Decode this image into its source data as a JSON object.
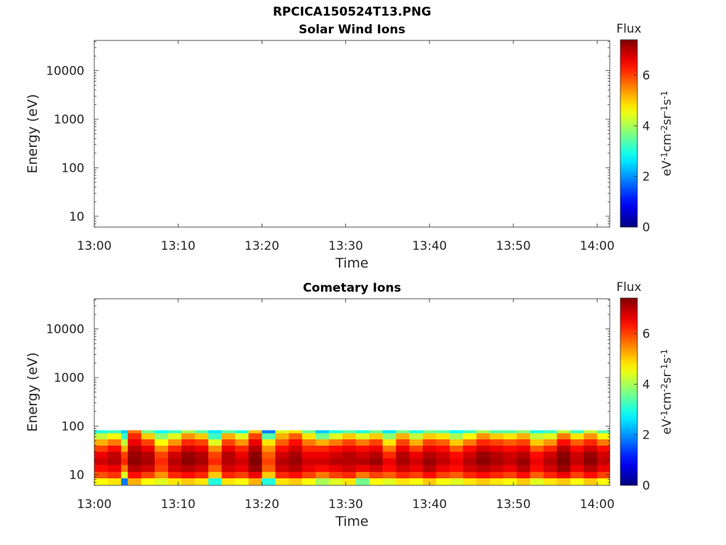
{
  "figure_title": "RPCICA150524T13.PNG",
  "colorbar": {
    "label_text": "Flux",
    "unit_parts": [
      "eV",
      "-1",
      "cm",
      "-2",
      "sr",
      "-1",
      "s",
      "-1"
    ],
    "ticks": [
      "0",
      "2",
      "4",
      "6"
    ],
    "range": [
      0,
      7.4
    ],
    "colormap": "jet"
  },
  "chart_data": [
    {
      "type": "heatmap",
      "title": "Solar Wind Ions",
      "xlabel": "Time",
      "ylabel": "Energy (eV)",
      "x_ticks": [
        "13:00",
        "13:10",
        "13:20",
        "13:30",
        "13:40",
        "13:50",
        "14:00"
      ],
      "x_range_minutes": [
        0,
        61.5
      ],
      "y_scale": "log",
      "y_ticks": [
        "10",
        "100",
        "1000",
        "10000"
      ],
      "y_range": [
        6,
        42000
      ],
      "energy_bins_edges": [
        6.2,
        8.5,
        11.5,
        16,
        22,
        30,
        40,
        54,
        72,
        82
      ],
      "columns": []
    },
    {
      "type": "heatmap",
      "title": "Cometary Ions",
      "xlabel": "Time",
      "ylabel": "Energy (eV)",
      "x_ticks": [
        "13:00",
        "13:10",
        "13:20",
        "13:30",
        "13:40",
        "13:50",
        "14:00"
      ],
      "x_range_minutes": [
        0,
        61.5
      ],
      "y_scale": "log",
      "y_ticks": [
        "10",
        "100",
        "1000",
        "10000"
      ],
      "y_range": [
        6,
        42000
      ],
      "energy_bins_edges": [
        6.2,
        8.5,
        11.5,
        16,
        22,
        30,
        40,
        54,
        72,
        82
      ],
      "columns": [
        {
          "t": 0.0,
          "dt": 1.6,
          "flux": [
            4.6,
            5.9,
            6.4,
            6.8,
            6.6,
            6.0,
            5.2,
            4.2,
            3.0
          ]
        },
        {
          "t": 1.6,
          "dt": 1.6,
          "flux": [
            4.8,
            6.1,
            6.6,
            7.0,
            6.9,
            6.4,
            5.6,
            4.6,
            3.2
          ]
        },
        {
          "t": 3.2,
          "dt": 0.8,
          "flux": [
            1.8,
            4.4,
            5.6,
            6.2,
            6.0,
            5.2,
            4.2,
            3.2,
            2.4
          ]
        },
        {
          "t": 4.0,
          "dt": 1.6,
          "flux": [
            5.2,
            6.4,
            7.0,
            7.3,
            7.2,
            7.0,
            6.6,
            6.2,
            5.6
          ]
        },
        {
          "t": 5.6,
          "dt": 1.6,
          "flux": [
            4.6,
            6.0,
            6.8,
            7.1,
            7.0,
            6.6,
            6.0,
            5.0,
            3.6
          ]
        },
        {
          "t": 7.2,
          "dt": 1.6,
          "flux": [
            4.4,
            5.4,
            6.0,
            6.2,
            6.0,
            5.4,
            4.6,
            3.8,
            2.8
          ]
        },
        {
          "t": 8.8,
          "dt": 1.6,
          "flux": [
            4.8,
            6.2,
            6.8,
            7.0,
            6.8,
            6.2,
            5.4,
            4.4,
            3.2
          ]
        },
        {
          "t": 10.4,
          "dt": 1.6,
          "flux": [
            5.0,
            6.4,
            7.0,
            7.3,
            7.2,
            6.8,
            6.2,
            5.4,
            4.0
          ]
        },
        {
          "t": 12.0,
          "dt": 1.6,
          "flux": [
            4.8,
            6.2,
            6.8,
            7.1,
            7.0,
            6.6,
            6.0,
            5.0,
            3.4
          ]
        },
        {
          "t": 13.6,
          "dt": 1.6,
          "flux": [
            3.0,
            5.0,
            5.8,
            6.2,
            6.0,
            5.4,
            4.4,
            3.2,
            2.6
          ]
        },
        {
          "t": 15.2,
          "dt": 1.6,
          "flux": [
            4.8,
            6.2,
            6.8,
            7.0,
            7.0,
            6.6,
            6.0,
            5.2,
            3.4
          ]
        },
        {
          "t": 16.8,
          "dt": 1.6,
          "flux": [
            4.6,
            6.0,
            6.6,
            6.8,
            6.6,
            6.2,
            5.4,
            4.4,
            3.0
          ]
        },
        {
          "t": 18.4,
          "dt": 1.6,
          "flux": [
            5.2,
            6.6,
            7.2,
            7.4,
            7.3,
            7.0,
            6.6,
            6.0,
            5.0
          ]
        },
        {
          "t": 20.0,
          "dt": 1.6,
          "flux": [
            3.0,
            5.0,
            5.8,
            6.0,
            5.8,
            5.4,
            4.8,
            3.4,
            1.8
          ]
        },
        {
          "t": 21.6,
          "dt": 1.6,
          "flux": [
            4.8,
            6.2,
            6.8,
            7.0,
            6.8,
            6.4,
            5.8,
            5.2,
            4.4
          ]
        },
        {
          "t": 23.2,
          "dt": 1.6,
          "flux": [
            5.0,
            6.4,
            7.0,
            7.2,
            7.1,
            6.8,
            6.4,
            5.8,
            4.8
          ]
        },
        {
          "t": 24.8,
          "dt": 1.6,
          "flux": [
            4.6,
            6.0,
            6.6,
            6.8,
            6.6,
            6.2,
            5.6,
            4.8,
            3.6
          ]
        },
        {
          "t": 26.4,
          "dt": 1.6,
          "flux": [
            4.0,
            5.6,
            6.4,
            6.8,
            6.6,
            6.2,
            5.2,
            3.6,
            2.4
          ]
        },
        {
          "t": 28.0,
          "dt": 1.6,
          "flux": [
            4.4,
            6.0,
            6.6,
            7.0,
            6.8,
            6.4,
            5.6,
            4.4,
            3.0
          ]
        },
        {
          "t": 29.6,
          "dt": 1.6,
          "flux": [
            4.8,
            6.2,
            6.8,
            7.0,
            7.0,
            6.6,
            6.0,
            5.0,
            3.4
          ]
        },
        {
          "t": 31.2,
          "dt": 1.6,
          "flux": [
            3.6,
            5.6,
            6.6,
            7.0,
            6.8,
            6.4,
            5.6,
            4.4,
            3.0
          ]
        },
        {
          "t": 32.8,
          "dt": 1.6,
          "flux": [
            4.6,
            6.0,
            6.8,
            7.2,
            7.0,
            6.6,
            6.0,
            5.0,
            3.6
          ]
        },
        {
          "t": 34.4,
          "dt": 1.6,
          "flux": [
            4.4,
            5.8,
            6.4,
            6.6,
            6.2,
            5.6,
            4.8,
            3.8,
            2.6
          ]
        },
        {
          "t": 36.0,
          "dt": 1.6,
          "flux": [
            4.8,
            6.2,
            6.8,
            7.1,
            7.0,
            6.6,
            6.0,
            5.2,
            3.6
          ]
        },
        {
          "t": 37.6,
          "dt": 1.6,
          "flux": [
            4.6,
            6.0,
            6.6,
            6.8,
            6.6,
            6.0,
            5.2,
            4.2,
            3.0
          ]
        },
        {
          "t": 39.2,
          "dt": 1.6,
          "flux": [
            5.0,
            6.4,
            7.0,
            7.2,
            7.0,
            6.6,
            6.0,
            5.0,
            3.6
          ]
        },
        {
          "t": 40.8,
          "dt": 1.6,
          "flux": [
            4.6,
            6.0,
            6.6,
            6.9,
            6.8,
            6.4,
            5.8,
            4.8,
            3.4
          ]
        },
        {
          "t": 42.4,
          "dt": 1.6,
          "flux": [
            4.4,
            5.8,
            6.4,
            6.6,
            6.4,
            5.8,
            5.0,
            4.0,
            2.8
          ]
        },
        {
          "t": 44.0,
          "dt": 1.6,
          "flux": [
            4.8,
            6.2,
            6.8,
            7.0,
            6.8,
            6.4,
            5.6,
            4.6,
            3.2
          ]
        },
        {
          "t": 45.6,
          "dt": 1.6,
          "flux": [
            5.0,
            6.4,
            7.0,
            7.3,
            7.2,
            6.8,
            6.2,
            5.4,
            4.0
          ]
        },
        {
          "t": 47.2,
          "dt": 1.6,
          "flux": [
            4.8,
            6.2,
            6.8,
            7.1,
            7.0,
            6.6,
            6.0,
            5.0,
            3.4
          ]
        },
        {
          "t": 48.8,
          "dt": 1.6,
          "flux": [
            4.6,
            6.0,
            6.6,
            6.9,
            6.8,
            6.4,
            5.8,
            4.8,
            3.4
          ]
        },
        {
          "t": 50.4,
          "dt": 1.6,
          "flux": [
            5.0,
            6.4,
            7.0,
            7.2,
            7.0,
            6.6,
            6.0,
            5.2,
            3.8
          ]
        },
        {
          "t": 52.0,
          "dt": 1.6,
          "flux": [
            4.4,
            5.8,
            6.4,
            6.6,
            6.4,
            5.8,
            5.0,
            4.2,
            3.0
          ]
        },
        {
          "t": 53.6,
          "dt": 1.6,
          "flux": [
            4.8,
            6.2,
            6.8,
            7.0,
            6.8,
            6.2,
            5.4,
            4.4,
            3.2
          ]
        },
        {
          "t": 55.2,
          "dt": 1.6,
          "flux": [
            5.0,
            6.6,
            7.2,
            7.4,
            7.3,
            7.0,
            6.4,
            5.6,
            4.2
          ]
        },
        {
          "t": 56.8,
          "dt": 1.6,
          "flux": [
            4.6,
            6.0,
            6.6,
            6.9,
            6.8,
            6.4,
            5.8,
            4.8,
            3.2
          ]
        },
        {
          "t": 58.4,
          "dt": 1.6,
          "flux": [
            5.0,
            6.4,
            7.0,
            7.3,
            7.2,
            6.8,
            6.2,
            5.4,
            4.2
          ]
        },
        {
          "t": 60.0,
          "dt": 1.5,
          "flux": [
            4.6,
            6.0,
            6.6,
            6.9,
            6.8,
            6.4,
            5.6,
            4.6,
            3.4
          ]
        }
      ]
    }
  ]
}
